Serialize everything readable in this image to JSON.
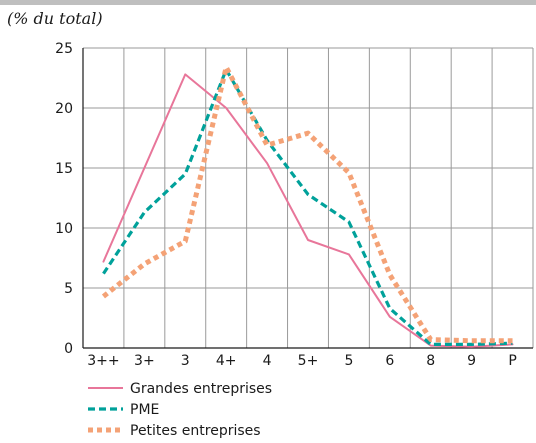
{
  "unit_note": "(% du total)",
  "chart_data": {
    "type": "line",
    "categories": [
      "3++",
      "3+",
      "3",
      "4+",
      "4",
      "5+",
      "5",
      "6",
      "8",
      "9",
      "P"
    ],
    "ylim": [
      0,
      25
    ],
    "yticks": [
      0,
      5,
      10,
      15,
      20,
      25
    ],
    "grid": true,
    "legend_position": "bottom-left",
    "series": [
      {
        "name": "Grandes entreprises",
        "color": "#e8769a",
        "style": "solid",
        "values": [
          7.2,
          15.0,
          22.8,
          20.0,
          15.4,
          9.0,
          7.8,
          2.6,
          0.2,
          0.1,
          0.3
        ]
      },
      {
        "name": "PME",
        "color": "#00a19a",
        "style": "dashed",
        "values": [
          6.2,
          11.3,
          14.5,
          23.2,
          17.3,
          12.8,
          10.5,
          3.3,
          0.3,
          0.3,
          0.4
        ]
      },
      {
        "name": "Petites entreprises",
        "color": "#f4a276",
        "style": "dotted",
        "values": [
          4.3,
          7.0,
          8.9,
          23.4,
          16.9,
          17.9,
          14.6,
          6.1,
          0.7,
          0.6,
          0.6
        ]
      }
    ]
  }
}
